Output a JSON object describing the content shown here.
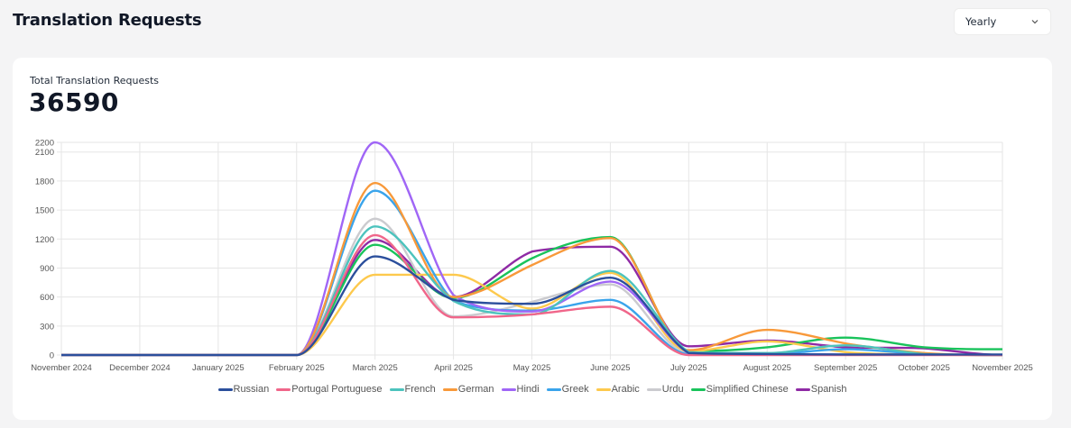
{
  "header": {
    "title": "Translation Requests",
    "period_select": {
      "selected": "Yearly"
    }
  },
  "card": {
    "metric_label": "Total Translation Requests",
    "metric_value": "36590"
  },
  "chart_data": {
    "type": "line",
    "title": "",
    "xlabel": "",
    "ylabel": "",
    "ylim": [
      0,
      2200
    ],
    "yticks": [
      0,
      300,
      600,
      900,
      1200,
      1500,
      1800,
      2100,
      2200
    ],
    "grid": true,
    "legend_position": "bottom",
    "categories": [
      "November 2024",
      "December 2024",
      "January 2025",
      "February 2025",
      "March 2025",
      "April 2025",
      "May 2025",
      "June 2025",
      "July 2025",
      "August 2025",
      "September 2025",
      "October 2025",
      "November 2025"
    ],
    "series": [
      {
        "name": "Russian",
        "color": "#2b4f9c",
        "values": [
          0,
          0,
          0,
          0,
          1020,
          570,
          530,
          800,
          20,
          10,
          5,
          5,
          5
        ]
      },
      {
        "name": "Portugal Portuguese",
        "color": "#f0668a",
        "values": [
          0,
          0,
          0,
          0,
          1240,
          390,
          420,
          500,
          0,
          0,
          0,
          0,
          0
        ]
      },
      {
        "name": "French",
        "color": "#4cc3bd",
        "values": [
          0,
          0,
          0,
          0,
          1330,
          560,
          420,
          870,
          30,
          20,
          100,
          10,
          0
        ]
      },
      {
        "name": "German",
        "color": "#f8993a",
        "values": [
          0,
          0,
          0,
          0,
          1780,
          600,
          930,
          1210,
          50,
          260,
          120,
          20,
          0
        ]
      },
      {
        "name": "Hindi",
        "color": "#a066f6",
        "values": [
          0,
          0,
          0,
          0,
          2200,
          620,
          450,
          760,
          20,
          10,
          5,
          5,
          0
        ]
      },
      {
        "name": "Greek",
        "color": "#3aa4eb",
        "values": [
          0,
          0,
          0,
          0,
          1700,
          560,
          460,
          570,
          10,
          10,
          60,
          10,
          0
        ]
      },
      {
        "name": "Arabic",
        "color": "#fdc94d",
        "values": [
          0,
          0,
          0,
          0,
          830,
          830,
          480,
          850,
          40,
          140,
          30,
          5,
          0
        ]
      },
      {
        "name": "Urdu",
        "color": "#cbcbcf",
        "values": [
          0,
          0,
          0,
          0,
          1410,
          400,
          550,
          730,
          20,
          20,
          100,
          10,
          0
        ]
      },
      {
        "name": "Simplified Chinese",
        "color": "#19c35b",
        "values": [
          0,
          0,
          0,
          0,
          1140,
          590,
          1000,
          1220,
          40,
          80,
          180,
          80,
          60
        ]
      },
      {
        "name": "Spanish",
        "color": "#8f2aa5",
        "values": [
          0,
          0,
          0,
          0,
          1190,
          600,
          1070,
          1120,
          90,
          150,
          80,
          70,
          0
        ]
      }
    ]
  }
}
